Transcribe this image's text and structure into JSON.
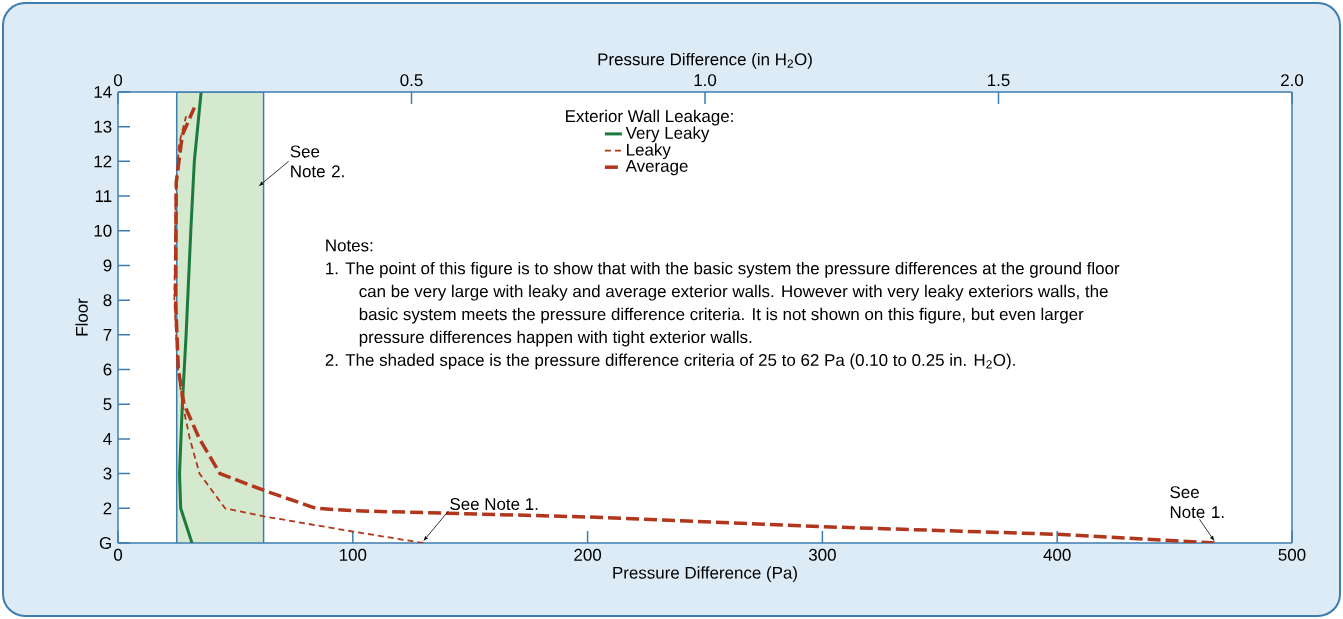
{
  "chart_data": {
    "type": "line",
    "xlabel": "Pressure Difference (Pa)",
    "x2label": "Pressure Difference (in H$_{2}$O)",
    "ylabel": "Floor",
    "legend_title": "Exterior Wall Leakage:",
    "legend": "top",
    "xlim": [
      0,
      500
    ],
    "xticks": [
      0,
      100,
      200,
      300,
      400,
      500
    ],
    "x2lim": [
      0,
      2.0
    ],
    "x2ticks": [
      0,
      0.5,
      {
        "value": 1.0,
        "label": "1.0"
      },
      1.5,
      {
        "value": 2.0,
        "label": "2.0"
      }
    ],
    "ylim": [
      1,
      14
    ],
    "yticks": [
      {
        "value": 1,
        "label": "G"
      },
      2,
      3,
      4,
      5,
      6,
      7,
      8,
      9,
      10,
      11,
      12,
      13,
      14
    ],
    "marker": "none",
    "grid": false,
    "bands": [
      {
        "axis": "x",
        "from": 25,
        "to": 62,
        "color": "#d5e9cf"
      }
    ],
    "series": [
      {
        "name": "Very Leaky",
        "color": "#1b7a3c",
        "line_style": "solid",
        "x": [
          31.5,
          26.7,
          26.2,
          27.4,
          29,
          31,
          32.5,
          35.4
        ],
        "values": [
          1,
          2,
          3,
          5,
          7,
          10,
          12,
          14
        ]
      },
      {
        "name": "Leaky",
        "color": "#b0361c",
        "line_style": "dashed",
        "x": [
          130,
          100,
          62,
          45.6,
          34.7,
          30.6,
          27.5,
          25.5,
          24,
          24.5,
          26,
          29
        ],
        "values": [
          1,
          1.33,
          1.77,
          2,
          3,
          4,
          5,
          6,
          8,
          11,
          12.5,
          13.3
        ]
      },
      {
        "name": "Average",
        "color": "#b0361c",
        "line_style": "dashed",
        "x": [
          467,
          400,
          300,
          200,
          100,
          84.3,
          62.8,
          43.4,
          34.7,
          28.1,
          25.7,
          24.5,
          24.8,
          27.4,
          32.5
        ],
        "values": [
          1,
          1.25,
          1.47,
          1.75,
          1.93,
          2,
          2.5,
          3,
          4,
          5,
          6,
          8,
          11.4,
          12.76,
          13.55
        ]
      }
    ],
    "annotations": [
      "See Note 2.",
      {
        "text": "See Note 1.",
        "x": 130,
        "y": 1.05
      },
      {
        "text": "See Note 1.",
        "x": 467,
        "y": 1.05
      },
      "Notes:",
      "1. The point of this figure is to show that with the basic system the pressure differences at the ground floor can be very large with leaky and average exterior walls. However with very leaky exteriors walls, the basic system meets the pressure difference criteria. It is not shown on this figure, but even larger pressure differences happen with tight exterior walls.",
      "2. The shaded space is the pressure difference criteria of 25 to 62 Pa (0.10 to 0.25 in. H$_{2}$O)."
    ]
  }
}
